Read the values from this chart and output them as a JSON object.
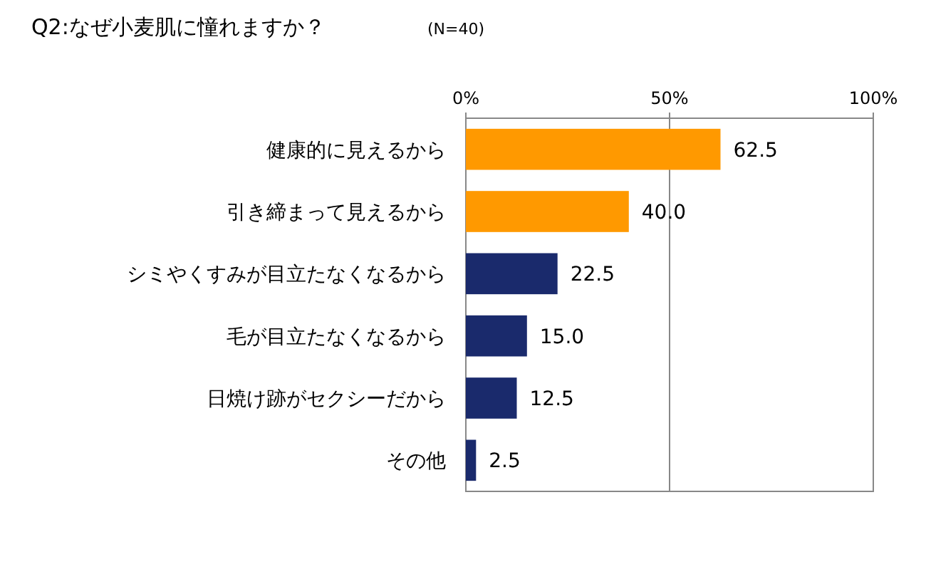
{
  "chart_data": {
    "type": "bar",
    "orientation": "horizontal",
    "title": "Q2:なぜ小麦肌に憧れますか？",
    "subtitle": "(N=40)",
    "categories": [
      "健康的に見えるから",
      "引き締まって見えるから",
      "シミやくすみが目立たなくなるから",
      "毛が目立たなくなるから",
      "日焼け跡がセクシーだから",
      "その他"
    ],
    "values": [
      62.5,
      40.0,
      22.5,
      15.0,
      12.5,
      2.5
    ],
    "value_labels": [
      "62.5",
      "40.0",
      "22.5",
      "15.0",
      "12.5",
      "2.5"
    ],
    "colors": [
      "#ff9900",
      "#ff9900",
      "#1a2a6c",
      "#1a2a6c",
      "#1a2a6c",
      "#1a2a6c"
    ],
    "xlim": [
      0,
      100
    ],
    "xticks": [
      {
        "value": 0,
        "label": "0%"
      },
      {
        "value": 50,
        "label": "50%"
      },
      {
        "value": 100,
        "label": "100%"
      }
    ],
    "grid": "x",
    "tick_labels": "x"
  }
}
